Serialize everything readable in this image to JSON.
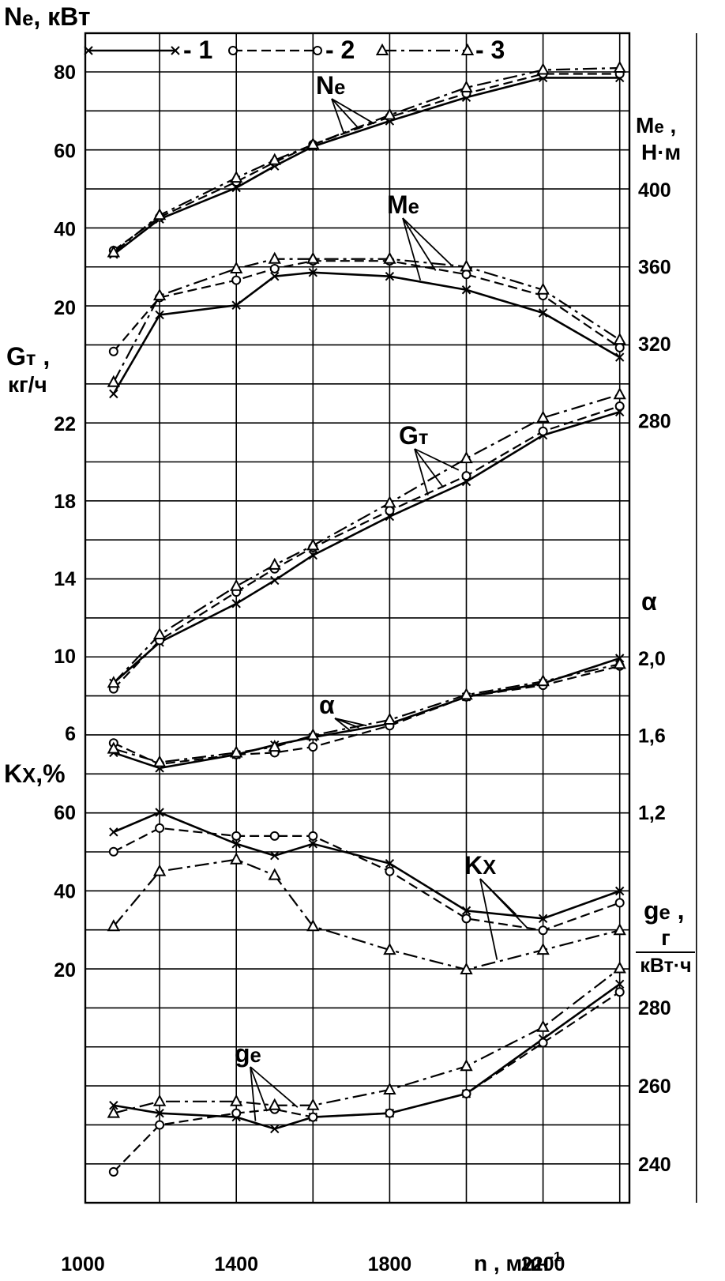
{
  "chart_data": {
    "type": "line",
    "x": [
      1080,
      1200,
      1400,
      1500,
      1600,
      1800,
      2000,
      2200,
      2400
    ],
    "xlabel": "n , мин",
    "xlabel_sup": "-1",
    "x_ticks": [
      "1000",
      "1400",
      "1800",
      "2200"
    ],
    "xlim": [
      1000,
      2500
    ],
    "legend": [
      {
        "label": "- 1",
        "style": "solid",
        "marker": "x"
      },
      {
        "label": "- 2",
        "style": "dashed",
        "marker": "o"
      },
      {
        "label": "- 3",
        "style": "dash-dot",
        "marker": "triangle"
      }
    ],
    "legend_placement": "top-left",
    "grid": true,
    "panels": [
      {
        "id": "Ne",
        "axis_side": "left",
        "axis_label": "N",
        "axis_label_sub": "e",
        "axis_unit": ", кВт",
        "ticks": [
          "20",
          "40",
          "60",
          "80"
        ],
        "ylim": [
          0,
          90
        ],
        "curve_label": "N",
        "curve_label_sub": "e",
        "series": [
          {
            "values": [
              33.5,
              42.5,
              50.5,
              56,
              61,
              67.5,
              73.5,
              78.5,
              78.5
            ]
          },
          {
            "values": [
              34.5,
              43,
              52,
              57,
              61.5,
              68.5,
              74.5,
              79.5,
              79.5
            ]
          },
          {
            "values": [
              34,
              43.5,
              53,
              57.5,
              61.5,
              69,
              76,
              80.5,
              81
            ]
          }
        ]
      },
      {
        "id": "Me",
        "axis_side": "right",
        "axis_label": "M",
        "axis_label_sub": "e",
        "axis_unit": ",",
        "axis_unit2": "Н·м",
        "ticks": [
          "280",
          "320",
          "360",
          "400"
        ],
        "ylim": [
          260,
          420
        ],
        "curve_label": "M",
        "curve_label_sub": "e",
        "series": [
          {
            "values": [
              294,
              335,
              340,
              355,
              357,
              355,
              348,
              336,
              313
            ]
          },
          {
            "values": [
              316,
              344,
              353,
              359,
              363,
              363,
              356,
              345,
              318
            ]
          },
          {
            "values": [
              300,
              345,
              359,
              364,
              364,
              364,
              360,
              348,
              322
            ]
          }
        ]
      },
      {
        "id": "Gt",
        "axis_side": "left",
        "axis_label": "G",
        "axis_label_sub": "т",
        "axis_unit": ",",
        "axis_unit2": "кг/ч",
        "ticks": [
          "6",
          "10",
          "14",
          "18",
          "22"
        ],
        "ylim": [
          4,
          24
        ],
        "curve_label": "G",
        "curve_label_sub": "т",
        "series": [
          {
            "values": [
              8.6,
              10.7,
              12.7,
              13.9,
              15.2,
              17.2,
              19.0,
              21.4,
              22.6
            ]
          },
          {
            "values": [
              8.3,
              10.8,
              13.3,
              14.5,
              15.6,
              17.5,
              19.3,
              21.6,
              22.9
            ]
          },
          {
            "values": [
              8.6,
              11.1,
              13.6,
              14.7,
              15.7,
              17.9,
              20.2,
              22.3,
              23.5
            ]
          }
        ]
      },
      {
        "id": "alpha",
        "axis_side": "right",
        "axis_label": "α",
        "ticks": [
          "1,2",
          "1,6",
          "2,0"
        ],
        "tick_values": [
          1.2,
          1.6,
          2.0
        ],
        "ylim": [
          0.8,
          2.4
        ],
        "curve_label": "α",
        "series": [
          {
            "values": [
              1.51,
              1.43,
              1.5,
              1.55,
              1.59,
              1.66,
              1.8,
              1.87,
              2.0
            ]
          },
          {
            "values": [
              1.56,
              1.45,
              1.5,
              1.51,
              1.54,
              1.65,
              1.8,
              1.86,
              1.96
            ]
          },
          {
            "values": [
              1.53,
              1.46,
              1.51,
              1.54,
              1.6,
              1.68,
              1.81,
              1.88,
              1.97
            ]
          }
        ]
      },
      {
        "id": "Kx",
        "axis_side": "left",
        "axis_label": "K",
        "axis_label_sub": "X",
        "axis_unit": ",%",
        "ticks": [
          "20",
          "40",
          "60"
        ],
        "ylim": [
          0,
          60
        ],
        "curve_label": "K",
        "curve_label_sub": "X",
        "series": [
          {
            "values": [
              55,
              60,
              52,
              49,
              52,
              47,
              35,
              33,
              40
            ]
          },
          {
            "values": [
              50,
              56,
              54,
              54,
              54,
              45,
              33,
              30,
              37
            ]
          },
          {
            "values": [
              31,
              45,
              48,
              44,
              31,
              25,
              20,
              25,
              30
            ]
          }
        ]
      },
      {
        "id": "ge",
        "axis_side": "right",
        "axis_label": "g",
        "axis_label_sub": "e",
        "axis_unit": ",",
        "axis_unit_num": "г",
        "axis_unit_den": "кВт·ч",
        "ticks": [
          "240",
          "260",
          "280"
        ],
        "ylim": [
          230,
          295
        ],
        "curve_label": "g",
        "curve_label_sub": "e",
        "series": [
          {
            "values": [
              255,
              253,
              252,
              249,
              252,
              253,
              258,
              272,
              286
            ]
          },
          {
            "values": [
              238,
              250,
              253,
              254,
              252,
              253,
              258,
              271,
              284
            ]
          },
          {
            "values": [
              253,
              256,
              256,
              255,
              255,
              259,
              265,
              275,
              290
            ]
          }
        ]
      }
    ]
  }
}
